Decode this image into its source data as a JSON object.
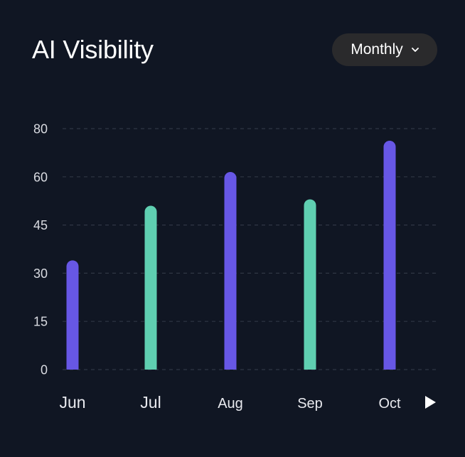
{
  "header": {
    "title": "AI Visibility",
    "period_label": "Monthly"
  },
  "colors": {
    "background": "#101623",
    "primary": "#6757e5",
    "secondary": "#5fcfb1",
    "grid": "#2f3644",
    "select_bg": "#2a2a2c"
  },
  "icons": {
    "dropdown": "chevron-down-icon",
    "next": "play-icon"
  },
  "chart_data": {
    "type": "bar",
    "title": "AI Visibility",
    "categories": [
      "Jun",
      "Jul",
      "Aug",
      "Sep",
      "Oct"
    ],
    "values": [
      34,
      51,
      62,
      53,
      75
    ],
    "bar_colors": [
      "#6757e5",
      "#5fcfb1",
      "#6757e5",
      "#5fcfb1",
      "#6757e5"
    ],
    "yticks": [
      0,
      15,
      30,
      45,
      60,
      80
    ],
    "ytick_labels": [
      "0",
      "15",
      "30",
      "45",
      "60",
      "80"
    ],
    "grid": true,
    "xlabel": "",
    "ylabel": ""
  }
}
